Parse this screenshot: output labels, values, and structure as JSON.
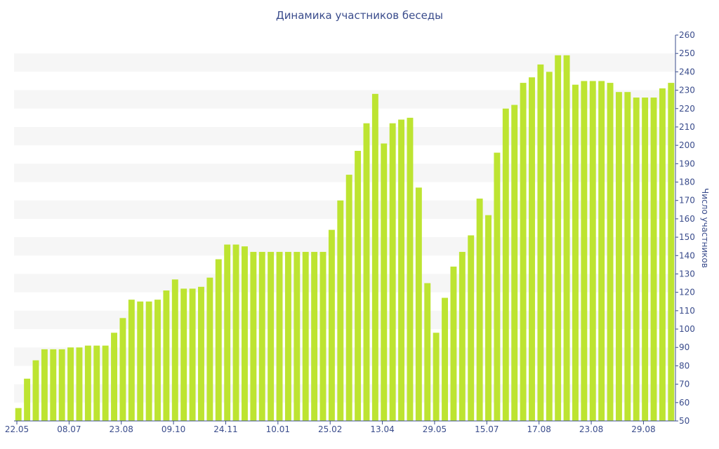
{
  "chart_data": {
    "type": "bar",
    "title": "Динамика участников беседы",
    "xlabel": "",
    "ylabel": "Число участников",
    "ylim": [
      50,
      260
    ],
    "ytick_step": 10,
    "y_axis_side": "right",
    "grid": "alternating horizontal bands",
    "bar_color": "#bde431",
    "band_color": "#f6f6f6",
    "text_color": "#3a4c8c",
    "values": [
      57,
      73,
      83,
      89,
      89,
      89,
      90,
      90,
      91,
      91,
      91,
      98,
      106,
      116,
      115,
      115,
      116,
      121,
      127,
      122,
      122,
      123,
      128,
      138,
      146,
      146,
      145,
      142,
      142,
      142,
      142,
      142,
      142,
      142,
      142,
      142,
      154,
      170,
      184,
      197,
      212,
      228,
      201,
      212,
      214,
      215,
      177,
      125,
      98,
      117,
      134,
      142,
      151,
      171,
      162,
      196,
      220,
      222,
      234,
      237,
      244,
      240,
      249,
      249,
      233,
      235,
      235,
      235,
      234,
      229,
      229,
      226,
      226,
      226,
      231,
      234
    ],
    "x_tick_labels": [
      {
        "index": 0,
        "label": "22.05"
      },
      {
        "index": 6,
        "label": "08.07"
      },
      {
        "index": 12,
        "label": "23.08"
      },
      {
        "index": 18,
        "label": "09.10"
      },
      {
        "index": 24,
        "label": "24.11"
      },
      {
        "index": 30,
        "label": "10.01"
      },
      {
        "index": 36,
        "label": "25.02"
      },
      {
        "index": 42,
        "label": "13.04"
      },
      {
        "index": 48,
        "label": "29.05"
      },
      {
        "index": 54,
        "label": "15.07"
      },
      {
        "index": 60,
        "label": "17.08"
      },
      {
        "index": 66,
        "label": "23.08"
      },
      {
        "index": 72,
        "label": "29.08"
      }
    ]
  }
}
